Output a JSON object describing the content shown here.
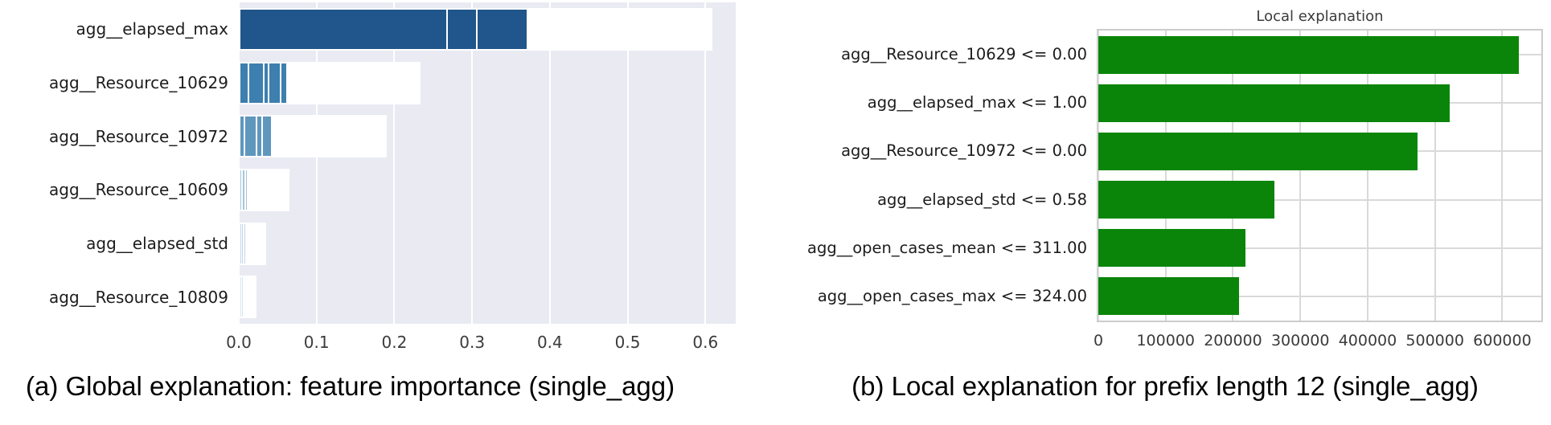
{
  "figure": {
    "background": "#ffffff"
  },
  "chart_data": [
    {
      "id": "a",
      "type": "bar",
      "orientation": "horizontal",
      "caption": "(a) Global explanation: feature importance (single_agg)",
      "categories": [
        "agg__elapsed_max",
        "agg__Resource_10629",
        "agg__Resource_10972",
        "agg__Resource_10609",
        "agg__elapsed_std",
        "agg__Resource_10809"
      ],
      "values": [
        0.605,
        0.23,
        0.186,
        0.061,
        0.031,
        0.019
      ],
      "segments": [
        [
          0.44,
          0.06,
          0.105
        ],
        [
          0.041,
          0.081,
          0.02,
          0.06,
          0.028
        ],
        [
          0.025,
          0.071,
          0.032,
          0.058
        ],
        [
          0.023,
          0.025,
          0.013
        ],
        [
          0.016,
          0.01,
          0.005
        ],
        [
          0.008,
          0.011
        ]
      ],
      "bar_colors": [
        "#20568b",
        "#3d7fae",
        "#5f97bd",
        "#a5c6dc",
        "#c3d7e8",
        "#d9e6f2"
      ],
      "xticks": [
        0,
        0.1,
        0.2,
        0.3,
        0.4,
        0.5,
        0.6
      ],
      "xtick_labels": [
        "0.0",
        "0.1",
        "0.2",
        "0.3",
        "0.4",
        "0.5",
        "0.6"
      ],
      "xlim": [
        0,
        0.639
      ],
      "ylabel": "",
      "xlabel": "",
      "grid": true,
      "plot_bg": "#e9eaf2",
      "grid_color": "#ffffff",
      "legend_position": "none"
    },
    {
      "id": "b",
      "type": "bar",
      "orientation": "horizontal",
      "title": "Local explanation",
      "caption": "(b) Local explanation for prefix length 12 (single_agg)",
      "categories": [
        "agg__Resource_10629 <= 0.00",
        "agg__elapsed_max <= 1.00",
        "agg__Resource_10972 <= 0.00",
        "agg__elapsed_std <= 0.58",
        "agg__open_cases_mean <= 311.00",
        "agg__open_cases_max <= 324.00"
      ],
      "values": [
        625000,
        522000,
        474000,
        262000,
        218000,
        209000
      ],
      "bar_color": "#0a850a",
      "xticks": [
        0,
        100000,
        200000,
        300000,
        400000,
        500000,
        600000
      ],
      "xtick_labels": [
        "0",
        "100000",
        "200000",
        "300000",
        "400000",
        "500000",
        "600000"
      ],
      "xlim": [
        0,
        658000
      ],
      "ylabel": "",
      "xlabel": "",
      "grid": true,
      "plot_bg": "#ffffff",
      "grid_color": "#d9d9d9",
      "frame_color": "#cccccc",
      "legend_position": "none"
    }
  ]
}
